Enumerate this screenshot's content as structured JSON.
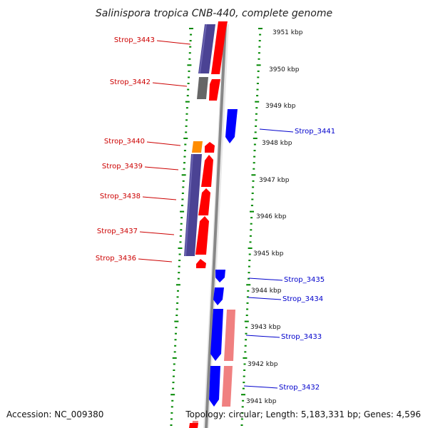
{
  "title": "Salinispora tropica CNB-440, complete genome",
  "footer": {
    "accession": "Accession: NC_009380",
    "topology": "Topology: circular; Length: 5,183,331 bp; Genes: 4,596"
  },
  "colors": {
    "backbone": "#888888",
    "ticks": "#008800",
    "forward_cds": "#ff0000",
    "reverse_cds": "#0000ff",
    "forward_label": "#cc0000",
    "reverse_label": "#0000cc",
    "protein_bar": "#4b4394",
    "gray_bar": "#666666",
    "orange_bar": "#ff8c00",
    "pink_bar": "#f08080"
  },
  "kbp_labels": [
    "3951 kbp",
    "3950 kbp",
    "3949 kbp",
    "3948 kbp",
    "3947 kbp",
    "3946 kbp",
    "3945 kbp",
    "3944 kbp",
    "3943 kbp",
    "3942 kbp",
    "3941 kbp"
  ],
  "forward_genes": [
    "Strop_3443",
    "Strop_3442",
    "Strop_3440",
    "Strop_3439",
    "Strop_3438",
    "Strop_3437",
    "Strop_3436"
  ],
  "reverse_genes": [
    "Strop_3441",
    "Strop_3435",
    "Strop_3434",
    "Strop_3433",
    "Strop_3432"
  ]
}
